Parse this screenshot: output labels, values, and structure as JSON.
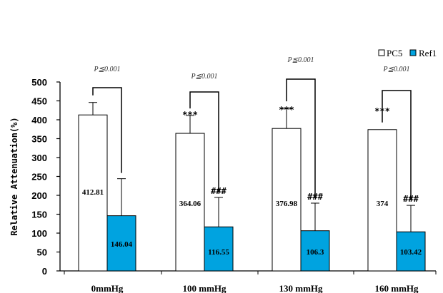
{
  "chart_data": {
    "type": "bar",
    "title": "",
    "xlabel": "",
    "ylabel": "Relative Attenuation(%)",
    "ylim": [
      0,
      500
    ],
    "yticks": [
      0,
      50,
      100,
      150,
      200,
      250,
      300,
      350,
      400,
      450,
      500
    ],
    "categories": [
      "0mmHg",
      "100 mmHg",
      "130 mmHg",
      "160 mmHg"
    ],
    "series": [
      {
        "name": "PC5",
        "color": "#ffffff",
        "values": [
          412.81,
          364.06,
          376.98,
          374
        ],
        "value_labels": [
          "412.81",
          "364.06",
          "376.98",
          "374"
        ],
        "error": [
          33,
          47,
          53,
          0
        ],
        "markers": [
          "",
          "***",
          "***",
          "***"
        ]
      },
      {
        "name": "Ref1",
        "color": "#00a3e0",
        "values": [
          146.04,
          116.55,
          106.3,
          103.42
        ],
        "value_labels": [
          "146.04",
          "116.55",
          "106.3",
          "103.42"
        ],
        "error": [
          98,
          78,
          73,
          70
        ],
        "markers": [
          "",
          "###",
          "###",
          "###"
        ]
      }
    ],
    "significance": [
      "P≦0.001",
      "P≦0.001",
      "P≦0.001",
      "P≦0.001"
    ],
    "legend": "top-right",
    "grid": false
  }
}
